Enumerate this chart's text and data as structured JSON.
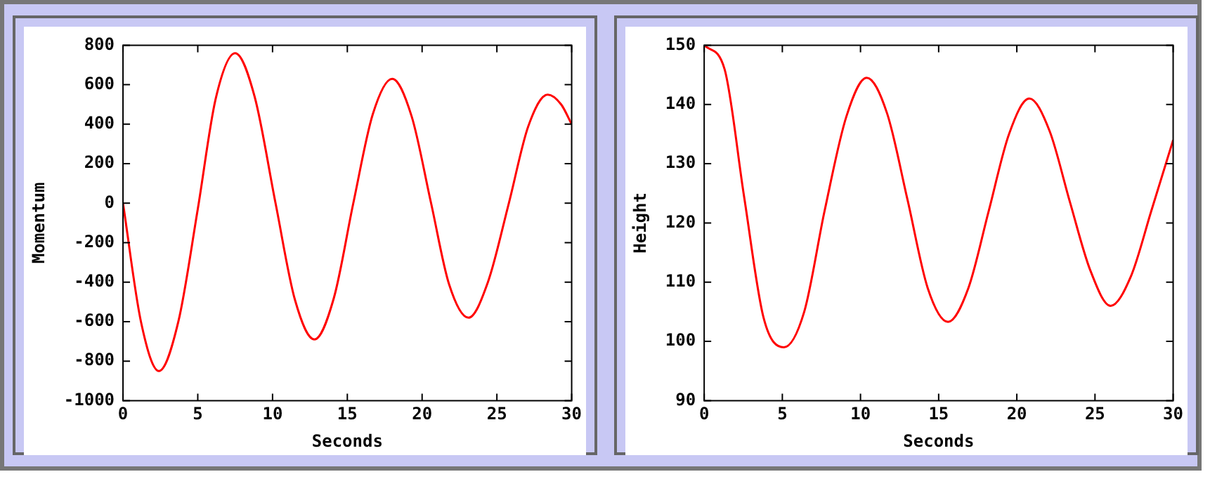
{
  "chart_data": [
    {
      "type": "line",
      "xlabel": "Seconds",
      "ylabel": "Momentum",
      "xlim": [
        0,
        30
      ],
      "xticks": [
        0,
        5,
        10,
        15,
        20,
        25,
        30
      ],
      "ylim": [
        -1000,
        800
      ],
      "yticks": [
        -1000,
        -800,
        -600,
        -400,
        -200,
        0,
        200,
        400,
        600,
        800
      ],
      "grid": false,
      "legend": false,
      "marker": "none",
      "line_style": "solid",
      "series": [
        {
          "color": "#ff0000",
          "x": [
            0,
            1.2,
            2.4,
            3.7,
            5,
            6.2,
            7.5,
            8.8,
            10.2,
            11.5,
            12.8,
            14.1,
            15.4,
            16.7,
            18,
            19.3,
            20.6,
            21.8,
            23.1,
            24.4,
            25.8,
            27.1,
            28.4,
            29.3,
            30
          ],
          "values": [
            0,
            -600,
            -850,
            -600,
            -30,
            530,
            760,
            540,
            0,
            -490,
            -690,
            -480,
            0,
            450,
            630,
            440,
            0,
            -410,
            -580,
            -400,
            0,
            390,
            550,
            500,
            400
          ]
        }
      ]
    },
    {
      "type": "line",
      "xlabel": "Seconds",
      "ylabel": "Height",
      "xlim": [
        0,
        30
      ],
      "xticks": [
        0,
        5,
        10,
        15,
        20,
        25,
        30
      ],
      "ylim": [
        90,
        150
      ],
      "yticks": [
        90,
        100,
        110,
        120,
        130,
        140,
        150
      ],
      "grid": false,
      "legend": false,
      "marker": "none",
      "line_style": "solid",
      "series": [
        {
          "color": "#ff0000",
          "x": [
            0,
            1.3,
            2.55,
            3.8,
            5.1,
            6.4,
            7.7,
            9.1,
            10.4,
            11.7,
            13,
            14.3,
            15.6,
            16.9,
            18.2,
            19.5,
            20.8,
            22.1,
            23.4,
            24.7,
            26,
            27.3,
            28.6,
            30
          ],
          "values": [
            150,
            146,
            124.5,
            104,
            99,
            105,
            122,
            138,
            144.5,
            138.5,
            124,
            109,
            103.3,
            109,
            122,
            135,
            141,
            135.5,
            123.5,
            112,
            106,
            111,
            122,
            134
          ]
        }
      ]
    }
  ]
}
